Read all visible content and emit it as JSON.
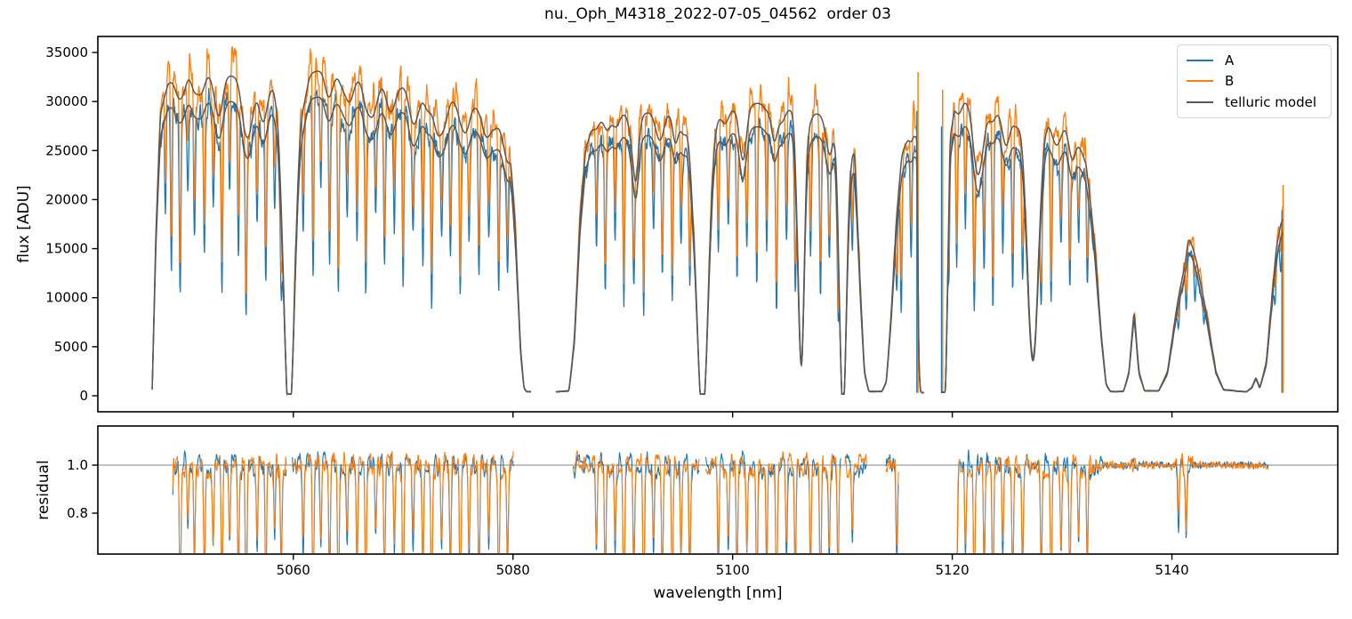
{
  "figure": {
    "title": "nu._Oph_M4318_2022-07-05_04562  order 03"
  },
  "chart_data": {
    "type": "line",
    "title": "nu._Oph_M4318_2022-07-05_04562  order 03",
    "xlabel": "wavelength [nm]",
    "x_ticks": [
      5060,
      5080,
      5100,
      5120,
      5140
    ],
    "xlim": [
      5042.2,
      5155.1
    ],
    "panels": [
      {
        "name": "flux",
        "ylabel": "flux [ADU]",
        "ylim": [
          -1700,
          36600
        ],
        "yticks": [
          0,
          5000,
          10000,
          15000,
          20000,
          25000,
          30000,
          35000
        ]
      },
      {
        "name": "residual",
        "ylabel": "residual",
        "ylim": [
          0.63,
          1.163
        ],
        "yticks": [
          0.8,
          1.0
        ],
        "hline": 1.0,
        "hline_color": "#808080"
      }
    ],
    "legend": [
      {
        "label": "A",
        "color": "#1f77b4"
      },
      {
        "label": "B",
        "color": "#ff7f0e"
      },
      {
        "label": "telluric model",
        "color": "#595959"
      }
    ],
    "colors": {
      "A": "#1f77b4",
      "B": "#ff7f0e",
      "telluric": "#595959",
      "axes": "#000000"
    },
    "model": {
      "telluric_lower_scale": 0.92,
      "b_scale": 1.015,
      "saturation_floor": 170,
      "stellar_sigma": 0.07,
      "ripple": {
        "spacing": 1.9,
        "depth_min": 0.02,
        "depth_max": 0.06,
        "sigma": 0.3
      },
      "edge_spikes": [
        {
          "x": 5116.88,
          "top": 33000
        },
        {
          "x": 5119.12,
          "top": 31200
        },
        {
          "x": 5150.12,
          "top": 21500
        }
      ],
      "residual_flat_ranges": [
        [
          5141.9,
          5148.1
        ]
      ],
      "residual_force_ranges": [
        [
          5148.1,
          5148.8
        ]
      ],
      "residual_threshold": 1500,
      "segments": [
        {
          "x_range": [
            5047.15,
            5081.6
          ],
          "residual_range": [
            5049.0,
            5080.1
          ],
          "residual_in_gaps": false,
          "continuum": [
            [
              5047.15,
              700
            ],
            [
              5047.5,
              18000
            ],
            [
              5047.9,
              29000
            ],
            [
              5048.6,
              31800
            ],
            [
              5049.6,
              32800
            ],
            [
              5051,
              33400
            ],
            [
              5052.5,
              33100
            ],
            [
              5054,
              32700
            ],
            [
              5056,
              32300
            ],
            [
              5058,
              31900
            ],
            [
              5060,
              31400
            ],
            [
              5061.5,
              32900
            ],
            [
              5062.8,
              33300
            ],
            [
              5064,
              32900
            ],
            [
              5066,
              32400
            ],
            [
              5068,
              32000
            ],
            [
              5070,
              31500
            ],
            [
              5072,
              31000
            ],
            [
              5074,
              30400
            ],
            [
              5075.5,
              30000
            ],
            [
              5077,
              29300
            ],
            [
              5078.2,
              28700
            ],
            [
              5079.2,
              27800
            ],
            [
              5079.8,
              25500
            ],
            [
              5080.3,
              15000
            ],
            [
              5080.7,
              4500
            ],
            [
              5081,
              800
            ],
            [
              5081.25,
              430
            ],
            [
              5081.6,
              430
            ]
          ],
          "telluric_lines": [
            [
              5050,
              0.05,
              0.3
            ],
            [
              5051.6,
              0.07,
              0.35
            ],
            [
              5053.1,
              0.09,
              0.4
            ],
            [
              5055.9,
              0.17,
              0.45
            ],
            [
              5057.3,
              0.1,
              0.38
            ],
            [
              5059.62,
              1.08,
              0.5
            ],
            [
              5061,
              0.05,
              0.3
            ],
            [
              5063.3,
              0.06,
              0.35
            ],
            [
              5065.1,
              0.08,
              0.38
            ],
            [
              5067.2,
              0.11,
              0.42
            ],
            [
              5069,
              0.07,
              0.36
            ],
            [
              5071.1,
              0.09,
              0.4
            ],
            [
              5073.2,
              0.13,
              0.45
            ],
            [
              5075.4,
              0.08,
              0.38
            ],
            [
              5077.6,
              0.09,
              0.4
            ],
            [
              5079.3,
              0.08,
              0.35
            ]
          ],
          "stellar_lines": [
            [
              5048.35,
              0.32
            ],
            [
              5048.9,
              0.52
            ],
            [
              5049.7,
              0.58
            ],
            [
              5050.4,
              0.25
            ],
            [
              5051,
              0.38
            ],
            [
              5051.9,
              0.45
            ],
            [
              5052.7,
              0.3
            ],
            [
              5053.5,
              0.55
            ],
            [
              5054.2,
              0.28
            ],
            [
              5055,
              0.44
            ],
            [
              5055.7,
              0.62
            ],
            [
              5056.7,
              0.33
            ],
            [
              5057.5,
              0.5
            ],
            [
              5058.3,
              0.28
            ],
            [
              5058.9,
              0.4
            ],
            [
              5060.9,
              0.33
            ],
            [
              5061.8,
              0.55
            ],
            [
              5062.5,
              0.28
            ],
            [
              5063.3,
              0.47
            ],
            [
              5064.1,
              0.6
            ],
            [
              5064.9,
              0.3
            ],
            [
              5065.8,
              0.42
            ],
            [
              5066.6,
              0.55
            ],
            [
              5067.5,
              0.27
            ],
            [
              5068.3,
              0.46
            ],
            [
              5069.2,
              0.34
            ],
            [
              5070,
              0.56
            ],
            [
              5070.9,
              0.3
            ],
            [
              5071.8,
              0.46
            ],
            [
              5072.6,
              0.6
            ],
            [
              5073.5,
              0.3
            ],
            [
              5074.3,
              0.41
            ],
            [
              5075.2,
              0.56
            ],
            [
              5076,
              0.35
            ],
            [
              5076.9,
              0.47
            ],
            [
              5077.8,
              0.3
            ],
            [
              5078.7,
              0.52
            ],
            [
              5079.5,
              0.36
            ]
          ]
        },
        {
          "x_range": [
            5083.9,
            5117.4
          ],
          "residual_range": [
            5085.5,
            5115.1
          ],
          "residual_in_gaps": false,
          "continuum": [
            [
              5083.9,
              420
            ],
            [
              5085.1,
              520
            ],
            [
              5085.6,
              6000
            ],
            [
              5086.1,
              18000
            ],
            [
              5086.6,
              25000
            ],
            [
              5087.2,
              27400
            ],
            [
              5088,
              28300
            ],
            [
              5089,
              28700
            ],
            [
              5091,
              28800
            ],
            [
              5093,
              28900
            ],
            [
              5095,
              28700
            ],
            [
              5096.3,
              28200
            ],
            [
              5098,
              28400
            ],
            [
              5099.3,
              29000
            ],
            [
              5100.6,
              29300
            ],
            [
              5101.5,
              29700
            ],
            [
              5102.8,
              29900
            ],
            [
              5104,
              29600
            ],
            [
              5105.2,
              29200
            ],
            [
              5106.8,
              28900
            ],
            [
              5108.2,
              28700
            ],
            [
              5109.3,
              28300
            ],
            [
              5110.4,
              27700
            ],
            [
              5111.1,
              25000
            ],
            [
              5111.6,
              12000
            ],
            [
              5112,
              2500
            ],
            [
              5112.4,
              450
            ],
            [
              5113.6,
              450
            ],
            [
              5114,
              1500
            ],
            [
              5114.4,
              8000
            ],
            [
              5114.9,
              18000
            ],
            [
              5115.4,
              24500
            ],
            [
              5116,
              26900
            ],
            [
              5116.5,
              27400
            ],
            [
              5116.8,
              26500
            ],
            [
              5116.95,
              3000
            ],
            [
              5117.1,
              350
            ],
            [
              5117.4,
              350
            ]
          ],
          "telluric_lines": [
            [
              5088.6,
              0.05,
              0.3
            ],
            [
              5090.9,
              0.1,
              0.3
            ],
            [
              5091.2,
              0.16,
              0.22
            ],
            [
              5093.5,
              0.07,
              0.3
            ],
            [
              5094.8,
              0.1,
              0.25
            ],
            [
              5096.4,
              0.12,
              0.25
            ],
            [
              5097.25,
              1.08,
              0.52
            ],
            [
              5100.9,
              0.15,
              0.3
            ],
            [
              5103.8,
              0.12,
              0.28
            ],
            [
              5105.9,
              0.1,
              0.22
            ],
            [
              5106.25,
              0.88,
              0.28
            ],
            [
              5108.9,
              0.1,
              0.25
            ],
            [
              5110.05,
              1.05,
              0.33
            ]
          ],
          "stellar_lines": [
            [
              5087.6,
              0.35
            ],
            [
              5088.4,
              0.52
            ],
            [
              5089.3,
              0.3
            ],
            [
              5090.1,
              0.6
            ],
            [
              5091,
              0.4
            ],
            [
              5091.9,
              0.64
            ],
            [
              5092.8,
              0.3
            ],
            [
              5093.6,
              0.46
            ],
            [
              5094.5,
              0.56
            ],
            [
              5095.3,
              0.34
            ],
            [
              5096.1,
              0.45
            ],
            [
              5098.7,
              0.4
            ],
            [
              5099.6,
              0.3
            ],
            [
              5100.4,
              0.5
            ],
            [
              5101.3,
              0.34
            ],
            [
              5102.2,
              0.55
            ],
            [
              5103.1,
              0.4
            ],
            [
              5104,
              0.6
            ],
            [
              5104.9,
              0.34
            ],
            [
              5105.7,
              0.45
            ],
            [
              5107.1,
              0.4
            ],
            [
              5108,
              0.56
            ],
            [
              5108.8,
              0.34
            ],
            [
              5109.6,
              0.45
            ],
            [
              5110.9,
              0.28
            ],
            [
              5114.95,
              0.34
            ],
            [
              5115.35,
              0.55
            ],
            [
              5116.25,
              0.34
            ]
          ]
        },
        {
          "x_range": [
            5119.0,
            5150.1
          ],
          "residual_range": [
            5120.4,
            5148.8
          ],
          "residual_in_gaps": true,
          "continuum": [
            [
              5119,
              350
            ],
            [
              5119.4,
              400
            ],
            [
              5119.8,
              27000
            ],
            [
              5120.2,
              30600
            ],
            [
              5121,
              30300
            ],
            [
              5122,
              29900
            ],
            [
              5123.5,
              29400
            ],
            [
              5125,
              29000
            ],
            [
              5126.5,
              28700
            ],
            [
              5128,
              28400
            ],
            [
              5129.2,
              28100
            ],
            [
              5130.3,
              27600
            ],
            [
              5131.3,
              26500
            ],
            [
              5132.2,
              23500
            ],
            [
              5133,
              15500
            ],
            [
              5133.6,
              6000
            ],
            [
              5134,
              1200
            ],
            [
              5134.4,
              460
            ],
            [
              5135.6,
              460
            ],
            [
              5136.1,
              2500
            ],
            [
              5136.55,
              8800
            ],
            [
              5137,
              2500
            ],
            [
              5137.5,
              520
            ],
            [
              5138.8,
              520
            ],
            [
              5139.6,
              2500
            ],
            [
              5140.5,
              9500
            ],
            [
              5141.5,
              16400
            ],
            [
              5142.3,
              14000
            ],
            [
              5143.2,
              8000
            ],
            [
              5144,
              2500
            ],
            [
              5144.7,
              650
            ],
            [
              5146.8,
              420
            ],
            [
              5147.3,
              900
            ],
            [
              5147.65,
              1900
            ],
            [
              5148,
              800
            ],
            [
              5148.6,
              3500
            ],
            [
              5149.1,
              10000
            ],
            [
              5149.5,
              15000
            ],
            [
              5149.9,
              17500
            ],
            [
              5150.1,
              18200
            ]
          ],
          "telluric_lines": [
            [
              5120.6,
              0.05,
              0.3
            ],
            [
              5122.4,
              0.22,
              0.45
            ],
            [
              5124.9,
              0.12,
              0.35
            ],
            [
              5127.35,
              0.86,
              0.5
            ],
            [
              5129.6,
              0.07,
              0.35
            ],
            [
              5131,
              0.06,
              0.3
            ]
          ],
          "stellar_lines": [
            [
              5119.7,
              0.3
            ],
            [
              5120.4,
              0.45
            ],
            [
              5121.2,
              0.34
            ],
            [
              5122,
              0.55
            ],
            [
              5122.9,
              0.4
            ],
            [
              5123.7,
              0.6
            ],
            [
              5124.6,
              0.34
            ],
            [
              5125.5,
              0.5
            ],
            [
              5126.4,
              0.4
            ],
            [
              5128.1,
              0.46
            ],
            [
              5129,
              0.56
            ],
            [
              5129.9,
              0.34
            ],
            [
              5130.7,
              0.44
            ],
            [
              5131.5,
              0.3
            ],
            [
              5132.3,
              0.38
            ],
            [
              5140.6,
              0.22
            ],
            [
              5141.3,
              0.28
            ],
            [
              5142.1,
              0.24
            ],
            [
              5142.9,
              0.18
            ],
            [
              5149.4,
              0.22
            ],
            [
              5149.9,
              0.18
            ]
          ]
        }
      ]
    }
  }
}
